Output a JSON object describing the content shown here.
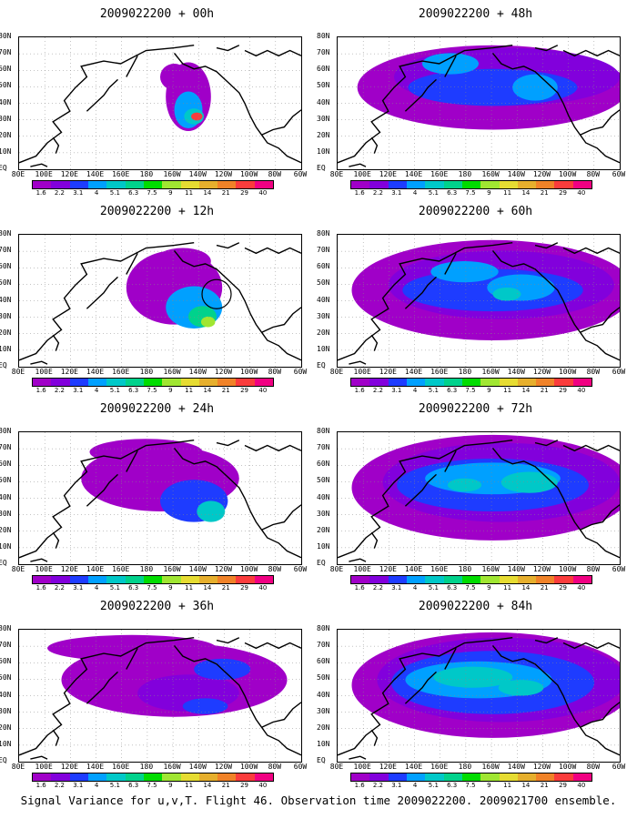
{
  "panels": [
    {
      "title": "2009022200 + 00h",
      "hour": 0
    },
    {
      "title": "2009022200 + 48h",
      "hour": 48
    },
    {
      "title": "2009022200 + 12h",
      "hour": 12
    },
    {
      "title": "2009022200 + 60h",
      "hour": 60
    },
    {
      "title": "2009022200 + 24h",
      "hour": 24
    },
    {
      "title": "2009022200 + 72h",
      "hour": 72
    },
    {
      "title": "2009022200 + 36h",
      "hour": 36
    },
    {
      "title": "2009022200 + 84h",
      "hour": 84
    }
  ],
  "axes": {
    "lat_labels": [
      "80N",
      "70N",
      "60N",
      "50N",
      "40N",
      "30N",
      "20N",
      "10N",
      "EQ"
    ],
    "lon_labels": [
      "80E",
      "100E",
      "120E",
      "140E",
      "160E",
      "180",
      "160W",
      "140W",
      "120W",
      "100W",
      "80W",
      "60W"
    ]
  },
  "colorbar": {
    "levels": [
      "1.6",
      "2.2",
      "3.1",
      "4",
      "5.1",
      "6.3",
      "7.5",
      "9",
      "11",
      "14",
      "21",
      "29",
      "40"
    ],
    "colors": [
      "#a000c8",
      "#8200dc",
      "#1e3cff",
      "#00a0ff",
      "#00c8c8",
      "#00d28c",
      "#00dc00",
      "#a0e632",
      "#e6dc32",
      "#e6af2d",
      "#f08228",
      "#fa3c3c",
      "#f00082"
    ]
  },
  "caption": "Signal Variance for u,v,T. Flight 46. Observation time 2009022200. 2009021700 ensemble."
}
